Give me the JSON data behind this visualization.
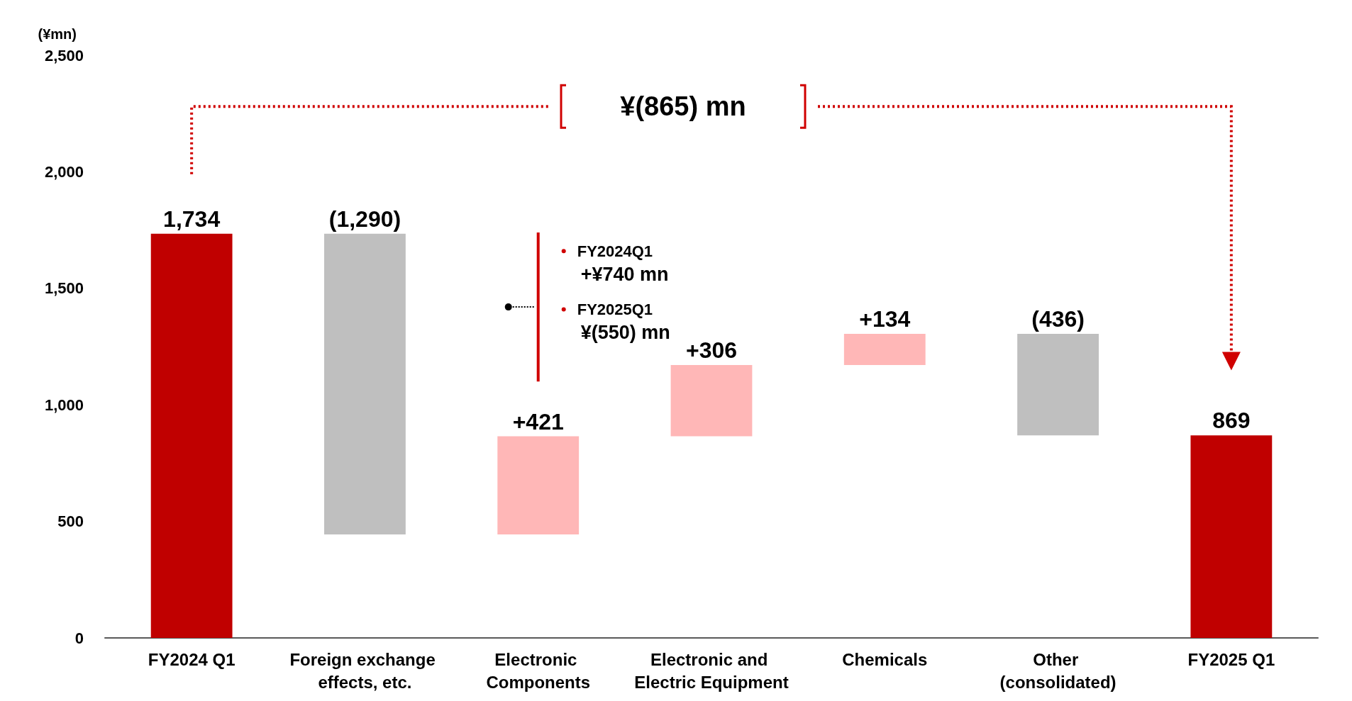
{
  "chart_data": {
    "type": "bar",
    "ylabel": "(¥mn)",
    "categories": [
      "FY2024 Q1",
      "Foreign exchange effects, etc.",
      "Electronic Components",
      "Electronic and Electric Equipment",
      "Chemicals",
      "Other (consolidated)",
      "FY2025 Q1"
    ],
    "base": [
      0,
      444,
      444,
      865,
      1171,
      869,
      0
    ],
    "values": [
      1734,
      1290,
      421,
      306,
      134,
      436,
      869
    ],
    "value_labels": [
      "1,734",
      "(1,290)",
      "+421",
      "+306",
      "+134",
      "(436)",
      "869"
    ],
    "colors": [
      "#c00000",
      "#bfbfbf",
      "#ffb7b7",
      "#ffb7b7",
      "#ffb7b7",
      "#bfbfbf",
      "#c00000"
    ],
    "ylim": [
      0,
      2500
    ],
    "yticks": [
      0,
      500,
      {
        "value": 1000,
        "label": "1,000"
      },
      {
        "value": 1500,
        "label": "1,500"
      },
      {
        "value": 2000,
        "label": "2,000"
      },
      {
        "value": 2500,
        "label": "2,500"
      }
    ],
    "grid": false,
    "annotations": [
      "¥(865) mn",
      "FY2024Q1",
      "+¥740 mn",
      "FY2025Q1",
      "¥(550) mn"
    ]
  }
}
